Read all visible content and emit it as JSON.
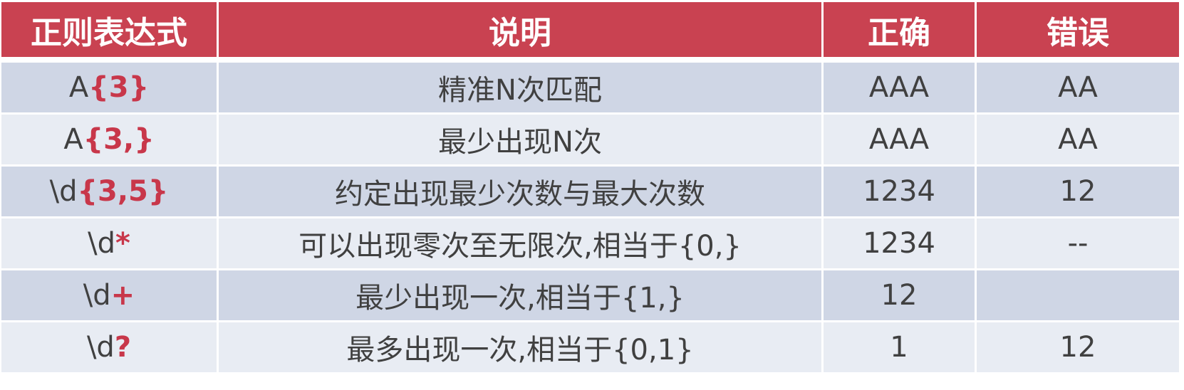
{
  "headers": [
    "正则表达式",
    "说明",
    "正确",
    "错误"
  ],
  "rows": [
    {
      "regex_base": "A",
      "regex_quantifier": "{3}",
      "description": "精准N次匹配",
      "correct": "AAA",
      "wrong": "AA"
    },
    {
      "regex_base": "A",
      "regex_quantifier": "{3,}",
      "description": "最少出现N次",
      "correct": "AAA",
      "wrong": "AA"
    },
    {
      "regex_base": "\\d",
      "regex_quantifier": "{3,5}",
      "description": "约定出现最少次数与最大次数",
      "correct": "1234",
      "wrong": "12"
    },
    {
      "regex_base": "\\d",
      "regex_quantifier": "*",
      "description": "可以出现零次至无限次,相当于{0,}",
      "correct": "1234",
      "wrong": "--"
    },
    {
      "regex_base": "\\d",
      "regex_quantifier": "+",
      "description": "最少出现一次,相当于{1,}",
      "correct": "12",
      "wrong": ""
    },
    {
      "regex_base": "\\d",
      "regex_quantifier": "?",
      "description": "最多出现一次,相当于{0,1}",
      "correct": "1",
      "wrong": "12"
    }
  ],
  "colors": {
    "header_bg": "#c94251",
    "row_odd": "#cfd6e5",
    "row_even": "#e8ecf3",
    "quantifier": "#c8374a",
    "text": "#404040"
  }
}
